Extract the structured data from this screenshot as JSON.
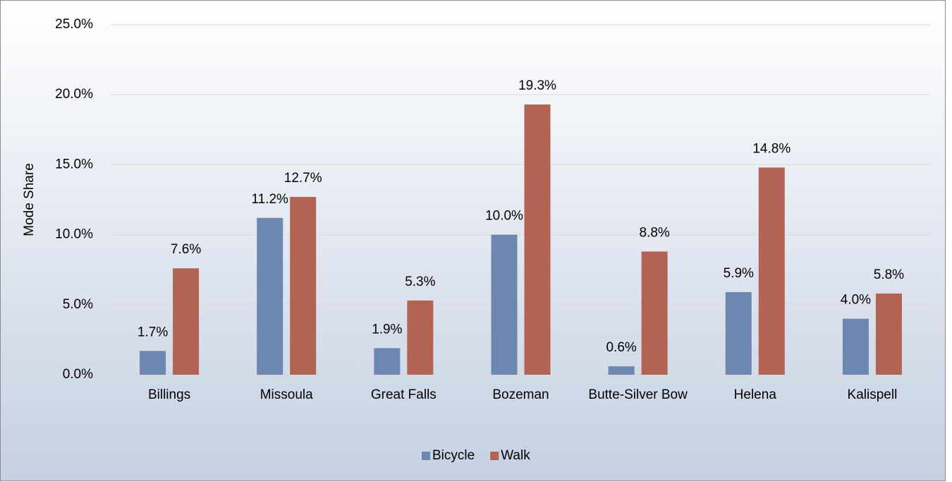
{
  "chart_data": {
    "type": "bar",
    "y_label": "Mode Share",
    "categories": [
      "Billings",
      "Missoula",
      "Great Falls",
      "Bozeman",
      "Butte-Silver Bow",
      "Helena",
      "Kalispell"
    ],
    "series": [
      {
        "name": "Bicycle",
        "color": "#6d87b1",
        "values": [
          1.7,
          11.2,
          1.9,
          10.0,
          0.6,
          5.9,
          4.0
        ],
        "value_labels": [
          "1.7%",
          "11.2%",
          "1.9%",
          "10.0%",
          "0.6%",
          "5.9%",
          "4.0%"
        ]
      },
      {
        "name": "Walk",
        "color": "#b26354",
        "values": [
          7.6,
          12.7,
          5.3,
          19.3,
          8.8,
          14.8,
          5.8
        ],
        "value_labels": [
          "7.6%",
          "12.7%",
          "5.3%",
          "19.3%",
          "8.8%",
          "14.8%",
          "5.8%"
        ]
      }
    ],
    "ylim": [
      0,
      25
    ],
    "yticks": [
      {
        "value": 0,
        "label": "0.0%"
      },
      {
        "value": 5,
        "label": "5.0%"
      },
      {
        "value": 10,
        "label": "10.0%"
      },
      {
        "value": 15,
        "label": "15.0%"
      },
      {
        "value": 20,
        "label": "20.0%"
      },
      {
        "value": 25,
        "label": "25.0%"
      }
    ],
    "grid": true,
    "legend": "bottom"
  }
}
